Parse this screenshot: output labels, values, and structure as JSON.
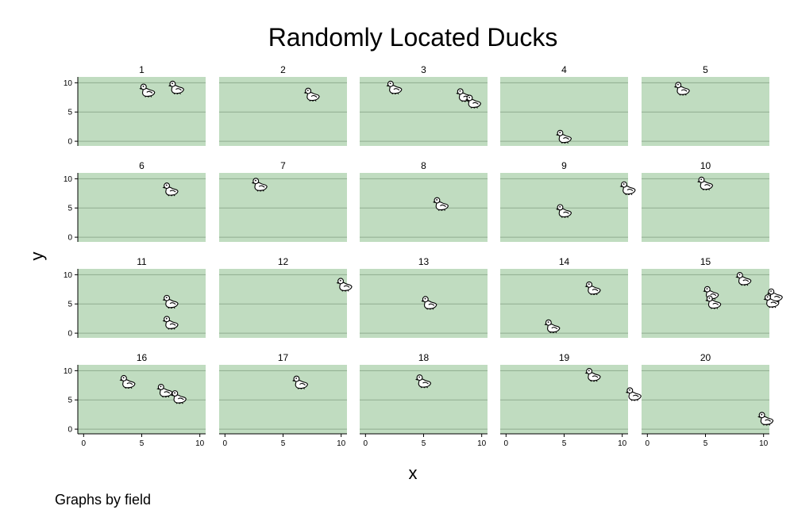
{
  "chart_data": {
    "type": "scatter",
    "title": "Randomly Located Ducks",
    "xlabel": "x",
    "ylabel": "y",
    "note": "Graphs by field",
    "xlim": [
      -0.5,
      10.5
    ],
    "ylim": [
      -0.8,
      11.0
    ],
    "xticks": [
      0,
      5,
      10
    ],
    "yticks": [
      0,
      5,
      10
    ],
    "grid": "horizontal",
    "marker": "duck-icon",
    "colors": {
      "panel_bg": "#c0dcc0",
      "grid": "#8fac8f",
      "axis": "#000000",
      "duck_outline": "#000000",
      "duck_fill": "#ffffff"
    },
    "layout": {
      "rows": 4,
      "cols": 5
    },
    "panels": [
      {
        "label": "1",
        "points": [
          [
            5.5,
            8.5
          ],
          [
            8.0,
            9.0
          ]
        ]
      },
      {
        "label": "2",
        "points": [
          [
            7.5,
            7.8
          ]
        ]
      },
      {
        "label": "3",
        "points": [
          [
            2.5,
            9.0
          ],
          [
            8.5,
            7.7
          ],
          [
            9.3,
            6.6
          ]
        ]
      },
      {
        "label": "4",
        "points": [
          [
            5.0,
            0.6
          ]
        ]
      },
      {
        "label": "5",
        "points": [
          [
            3.0,
            8.8
          ]
        ]
      },
      {
        "label": "6",
        "points": [
          [
            7.5,
            8.0
          ]
        ]
      },
      {
        "label": "7",
        "points": [
          [
            3.0,
            8.8
          ]
        ]
      },
      {
        "label": "8",
        "points": [
          [
            6.5,
            5.5
          ]
        ]
      },
      {
        "label": "9",
        "points": [
          [
            5.0,
            4.3
          ],
          [
            10.5,
            8.2
          ]
        ]
      },
      {
        "label": "10",
        "points": [
          [
            5.0,
            9.0
          ]
        ]
      },
      {
        "label": "11",
        "points": [
          [
            7.5,
            5.2
          ],
          [
            7.5,
            1.6
          ]
        ]
      },
      {
        "label": "12",
        "points": [
          [
            10.3,
            8.1
          ]
        ]
      },
      {
        "label": "13",
        "points": [
          [
            5.5,
            5.0
          ]
        ]
      },
      {
        "label": "14",
        "points": [
          [
            7.5,
            7.5
          ],
          [
            4.0,
            1.0
          ]
        ]
      },
      {
        "label": "15",
        "points": [
          [
            5.5,
            6.7
          ],
          [
            5.7,
            5.1
          ],
          [
            8.3,
            9.1
          ],
          [
            11.0,
            6.3
          ],
          [
            10.7,
            5.3
          ]
        ]
      },
      {
        "label": "16",
        "points": [
          [
            3.8,
            7.9
          ],
          [
            7.0,
            6.4
          ],
          [
            8.2,
            5.3
          ]
        ]
      },
      {
        "label": "17",
        "points": [
          [
            6.5,
            7.8
          ]
        ]
      },
      {
        "label": "18",
        "points": [
          [
            5.0,
            8.0
          ]
        ]
      },
      {
        "label": "19",
        "points": [
          [
            7.5,
            9.1
          ],
          [
            11.0,
            5.8
          ]
        ]
      },
      {
        "label": "20",
        "points": [
          [
            10.2,
            1.6
          ]
        ]
      }
    ]
  }
}
